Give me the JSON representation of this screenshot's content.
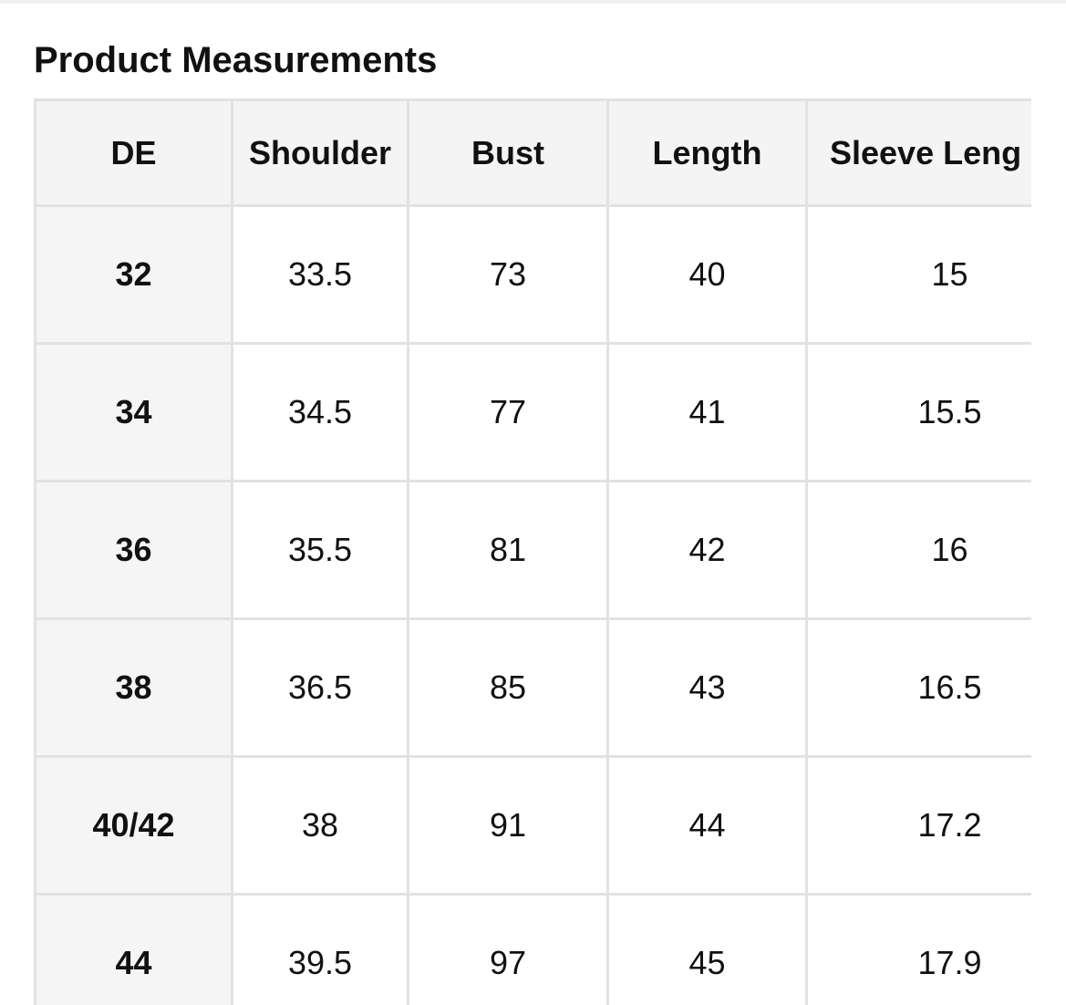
{
  "header": {
    "title": "Product Measurements"
  },
  "table": {
    "columns": [
      "DE",
      "Shoulder",
      "Bust",
      "Length",
      "Sleeve Leng"
    ],
    "rows": [
      [
        "32",
        "33.5",
        "73",
        "40",
        "15"
      ],
      [
        "34",
        "34.5",
        "77",
        "41",
        "15.5"
      ],
      [
        "36",
        "35.5",
        "81",
        "42",
        "16"
      ],
      [
        "38",
        "36.5",
        "85",
        "43",
        "16.5"
      ],
      [
        "40/42",
        "38",
        "91",
        "44",
        "17.2"
      ],
      [
        "44",
        "39.5",
        "97",
        "45",
        "17.9"
      ]
    ]
  }
}
